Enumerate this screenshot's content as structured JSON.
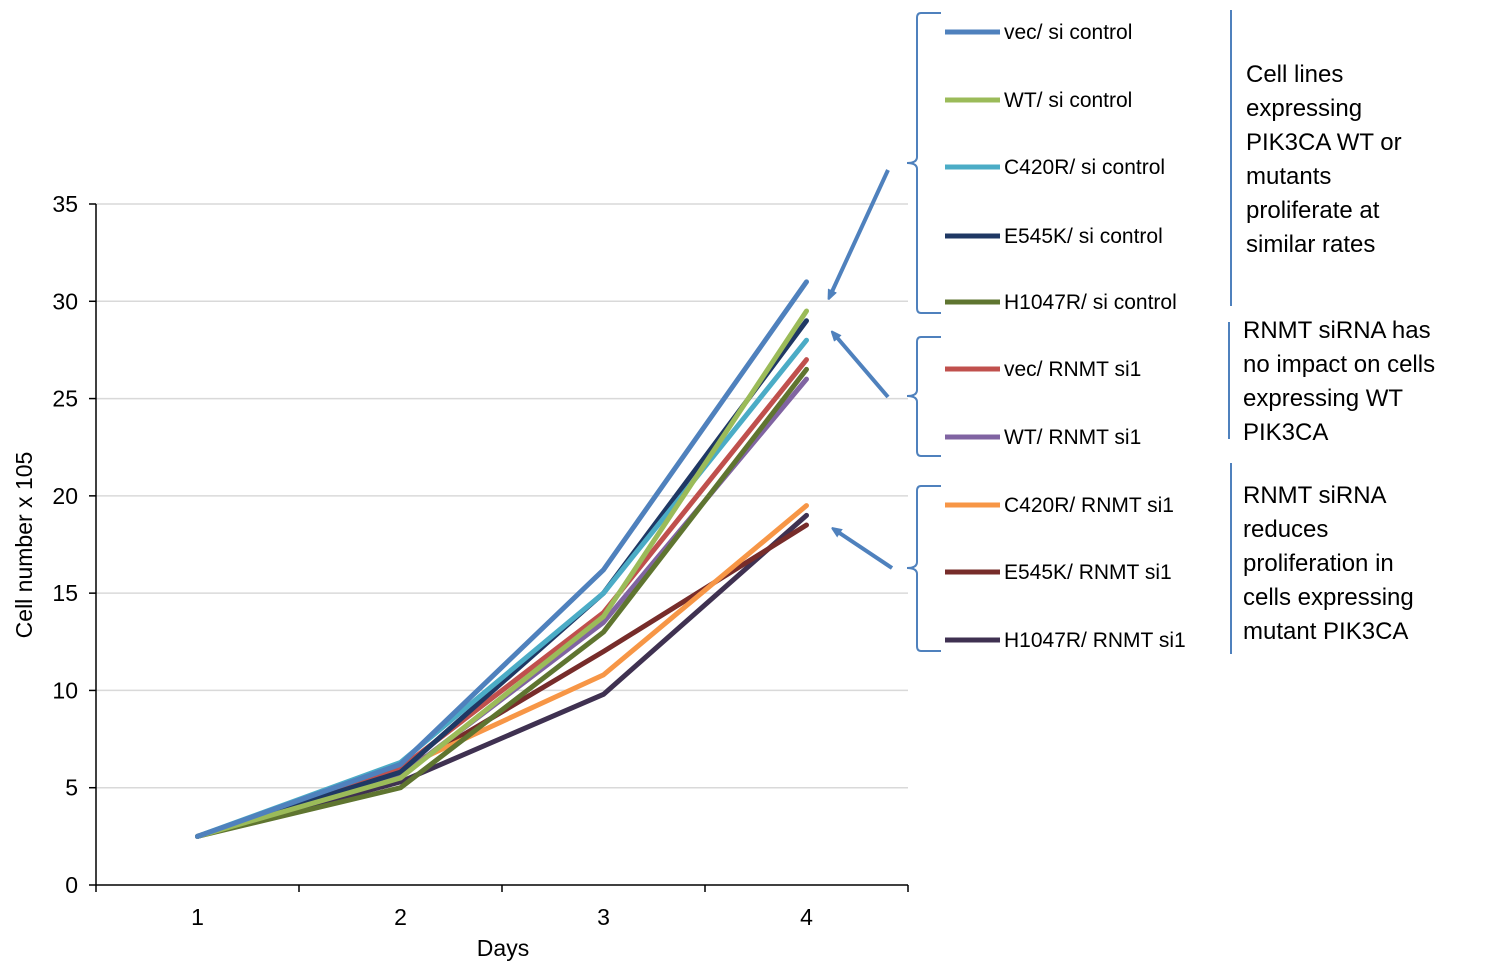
{
  "chart_data": {
    "type": "line",
    "title": "",
    "xlabel": "Days",
    "ylabel": "Cell number  x 105",
    "x": [
      1,
      2,
      3,
      4
    ],
    "ylim": [
      0,
      35
    ],
    "yticks": [
      0,
      5,
      10,
      15,
      20,
      25,
      30,
      35
    ],
    "grid": "horizontal",
    "legend_position": "right",
    "series": [
      {
        "name": "vec/ si control",
        "color": "#4f81bd",
        "values": [
          2.5,
          6.2,
          16.2,
          31.0
        ]
      },
      {
        "name": "WT/ si control",
        "color": "#9bbb59",
        "values": [
          2.5,
          5.5,
          13.8,
          29.5
        ]
      },
      {
        "name": "C420R/ si control",
        "color": "#4bacc6",
        "values": [
          2.5,
          6.3,
          15.0,
          28.0
        ]
      },
      {
        "name": "E545K/ si control",
        "color": "#1f3864",
        "values": [
          2.5,
          5.8,
          15.0,
          29.0
        ]
      },
      {
        "name": "H1047R/ si control",
        "color": "#5f7530",
        "values": [
          2.5,
          5.0,
          13.0,
          26.5
        ]
      },
      {
        "name": "vec/ RNMT si1",
        "color": "#c0504d",
        "values": [
          2.5,
          6.0,
          14.0,
          27.0
        ]
      },
      {
        "name": "WT/ RNMT si1",
        "color": "#8064a2",
        "values": [
          2.5,
          5.6,
          13.5,
          26.0
        ]
      },
      {
        "name": "C420R/ RNMT si1",
        "color": "#f79646",
        "values": [
          2.5,
          6.0,
          10.8,
          19.5
        ]
      },
      {
        "name": "E545K/ RNMT si1",
        "color": "#772c2a",
        "values": [
          2.5,
          5.8,
          12.0,
          18.5
        ]
      },
      {
        "name": "H1047R/ RNMT si1",
        "color": "#3f3151",
        "values": [
          2.5,
          5.3,
          9.8,
          19.0
        ]
      }
    ],
    "annotations": [
      {
        "group": "si control",
        "lines": [
          "Cell lines",
          "expressing",
          "PIK3CA WT or",
          "mutants",
          "proliferate at",
          "similar rates"
        ]
      },
      {
        "group": "RNMT si1 WT",
        "lines": [
          "RNMT siRNA has",
          "no impact on cells",
          "expressing WT",
          "PIK3CA"
        ]
      },
      {
        "group": "RNMT si1 mutants",
        "lines": [
          "RNMT siRNA",
          "reduces",
          "proliferation in",
          "cells expressing",
          "mutant PIK3CA"
        ]
      }
    ],
    "colors": {
      "axis": "#000000",
      "grid": "#d9d9d9",
      "bracket": "#4f81bd",
      "arrow": "#4f81bd"
    }
  }
}
